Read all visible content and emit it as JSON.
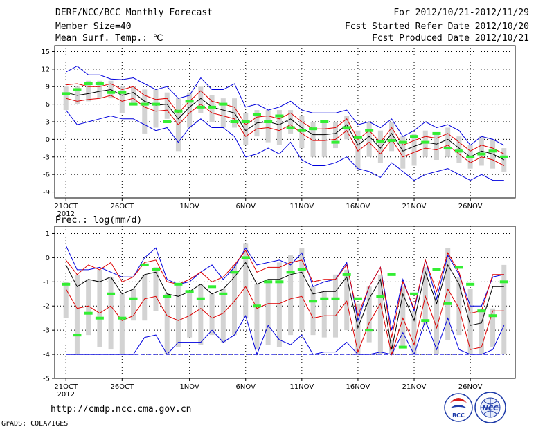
{
  "header": {
    "title": "DERF/NCC/BCC Monthly Forecast",
    "member_size": "Member Size=40",
    "variable": "Mean Surf. Temp.: ℃",
    "period": "For 2012/10/21-2012/11/29",
    "started": "Fcst Started Refer Date 2012/10/20",
    "produced": "Fcst Produced Date 2012/10/21"
  },
  "footer": {
    "url": "http://cmdp.ncc.cma.gov.cn",
    "credit": "GrADS: COLA/IGES",
    "logo_bcc_text": "BCC",
    "logo_ncc_text": "NCC"
  },
  "colors": {
    "box": "#d3d3d3",
    "median": "#33ee33",
    "mean": "#000000",
    "inner": "#dd0000",
    "outer": "#0000dd"
  },
  "chart_data": [
    {
      "type": "line",
      "title": "Mean Surf. Temp.: ℃",
      "ylim": [
        -10,
        16
      ],
      "yticks": [
        15,
        12,
        9,
        6,
        3,
        0,
        -3,
        -6,
        -9
      ],
      "ytick_labels": [
        "15",
        "12",
        "9",
        "6",
        "3",
        "0",
        "-3",
        "-6",
        "-9"
      ],
      "xticks": [
        {
          "day": 1,
          "label": "21OCT"
        },
        {
          "day": 6,
          "label": "26OCT"
        },
        {
          "day": 12,
          "label": "1NOV"
        },
        {
          "day": 17,
          "label": "6NOV"
        },
        {
          "day": 22,
          "label": "11NOV"
        },
        {
          "day": 27,
          "label": "16NOV"
        },
        {
          "day": 32,
          "label": "21NOV"
        },
        {
          "day": 37,
          "label": "26NOV"
        }
      ],
      "year_label": "2012",
      "x": [
        1,
        2,
        3,
        4,
        5,
        6,
        7,
        8,
        9,
        10,
        11,
        12,
        13,
        14,
        15,
        16,
        17,
        18,
        19,
        20,
        21,
        22,
        23,
        24,
        25,
        26,
        27,
        28,
        29,
        30,
        31,
        32,
        33,
        34,
        35,
        36,
        37,
        38,
        39,
        40
      ],
      "series": [
        {
          "name": "mean",
          "values": [
            8,
            7.5,
            7.8,
            8.2,
            8.5,
            7.5,
            8,
            6.5,
            5.8,
            6,
            3.5,
            5.5,
            7,
            5.5,
            5,
            4.5,
            1.5,
            2.8,
            3,
            2.5,
            3.5,
            2,
            0.8,
            0.8,
            1,
            2.5,
            -1,
            0.5,
            -1.5,
            1,
            -2,
            -1.2,
            -0.5,
            -0.8,
            0,
            -1.5,
            -3,
            -2,
            -2.5,
            -3.5
          ]
        },
        {
          "name": "inner_upper",
          "values": [
            9.3,
            9.5,
            9,
            9,
            9.5,
            8.5,
            9,
            7.5,
            6.8,
            7,
            4.5,
            6.5,
            8.3,
            6.5,
            6,
            5.5,
            2.5,
            3.8,
            4,
            3.5,
            4.5,
            3,
            1.8,
            1.8,
            2,
            3.5,
            0,
            1.5,
            -0.5,
            2,
            -1,
            -0.2,
            0.5,
            0.2,
            1,
            -0.5,
            -2,
            -1,
            -1.5,
            -2.5
          ]
        },
        {
          "name": "inner_lower",
          "values": [
            7,
            6.5,
            6.8,
            7,
            7.5,
            6.5,
            7,
            5.5,
            4.8,
            5,
            2.5,
            4.5,
            6,
            4.5,
            4,
            3.5,
            0.5,
            1.8,
            2,
            1.5,
            2.5,
            1,
            -0.2,
            -0.2,
            0,
            1.5,
            -2,
            -0.5,
            -2.5,
            0,
            -3,
            -2.2,
            -1.5,
            -1.8,
            -1,
            -2.5,
            -4,
            -3,
            -3.5,
            -4.5
          ]
        },
        {
          "name": "outer_upper",
          "values": [
            11.5,
            12.5,
            11,
            11,
            10.3,
            10.2,
            10.5,
            9.5,
            8.5,
            9,
            7,
            7.5,
            10.5,
            8.5,
            8.5,
            9.5,
            5.5,
            6,
            5,
            5.5,
            6.5,
            5,
            4.5,
            4.5,
            4.5,
            5,
            2.5,
            3,
            2,
            3.5,
            0.5,
            1.5,
            3,
            2,
            2.5,
            1.5,
            -1,
            0.5,
            0,
            -1
          ]
        },
        {
          "name": "outer_lower",
          "values": [
            5,
            2.5,
            3,
            3.5,
            4,
            3.5,
            3.5,
            2.5,
            1.5,
            2,
            -0.5,
            2,
            3.5,
            2,
            2,
            0.5,
            -3,
            -2.5,
            -1.5,
            -2.5,
            -0.5,
            -3.5,
            -4.5,
            -4.5,
            -4,
            -3,
            -5,
            -5.5,
            -6.5,
            -4,
            -5.5,
            -7,
            -6,
            -5.5,
            -5,
            -6,
            -7,
            -6,
            -7,
            -7
          ]
        },
        {
          "name": "box_max",
          "values": [
            9,
            9,
            10,
            10,
            10,
            9,
            9,
            8.5,
            8.5,
            8,
            7,
            8,
            9,
            7.5,
            7,
            7,
            4.5,
            5,
            5,
            5,
            5,
            4,
            3,
            3,
            3,
            4,
            1.5,
            3,
            1.5,
            3,
            0.5,
            1,
            1.5,
            1,
            2,
            0.5,
            -1,
            0.5,
            0,
            -1.5
          ]
        },
        {
          "name": "box_min",
          "values": [
            5,
            6,
            6.5,
            7,
            7,
            4.5,
            6,
            1,
            2,
            3.5,
            -2,
            2,
            4.5,
            3,
            2,
            2,
            -1,
            0.5,
            -0.5,
            -1,
            1,
            -1.5,
            -3,
            -3,
            -1.5,
            0,
            -5,
            -3,
            -4,
            -2,
            -5,
            -4.5,
            -3,
            -3.5,
            -3,
            -4,
            -5,
            -4.5,
            -5,
            -5.5
          ]
        },
        {
          "name": "median",
          "values": [
            7.8,
            8.5,
            9.5,
            9.5,
            8,
            8,
            6,
            6,
            6,
            3,
            4.8,
            6.5,
            5.5,
            5.5,
            6,
            3,
            3,
            4.3,
            3,
            4,
            2,
            1.5,
            1.8,
            3,
            -0.5,
            2,
            0.3,
            1.5,
            -0.3,
            -0.2,
            -0.5,
            0.5,
            -0.5,
            1,
            -1.5,
            -2,
            -3,
            -2.5,
            -2,
            -3
          ]
        }
      ]
    },
    {
      "type": "line",
      "title": "Prec.: log(mm/d)",
      "ylim": [
        -5,
        1.3
      ],
      "yticks": [
        1,
        0,
        -1,
        -2,
        -3,
        -4,
        -5
      ],
      "ytick_labels": [
        "1",
        "0",
        "-1",
        "-2",
        "-3",
        "-4",
        "-5"
      ],
      "xticks": [
        {
          "day": 1,
          "label": "21OCT"
        },
        {
          "day": 6,
          "label": "26OCT"
        },
        {
          "day": 12,
          "label": "1NOV"
        },
        {
          "day": 17,
          "label": "6NOV"
        },
        {
          "day": 22,
          "label": "11NOV"
        },
        {
          "day": 27,
          "label": "16NOV"
        },
        {
          "day": 32,
          "label": "21NOV"
        },
        {
          "day": 37,
          "label": "26NOV"
        }
      ],
      "year_label": "2012",
      "floor": -4,
      "x": [
        1,
        2,
        3,
        4,
        5,
        6,
        7,
        8,
        9,
        10,
        11,
        12,
        13,
        14,
        15,
        16,
        17,
        18,
        19,
        20,
        21,
        22,
        23,
        24,
        25,
        26,
        27,
        28,
        29,
        30,
        31,
        32,
        33,
        34,
        35,
        36,
        37,
        38,
        39,
        40
      ],
      "series": [
        {
          "name": "mean",
          "values": [
            -0.3,
            -1.2,
            -0.9,
            -1,
            -0.8,
            -1.5,
            -1.3,
            -0.7,
            -0.6,
            -1.5,
            -1.6,
            -1.4,
            -1.1,
            -1.5,
            -1.3,
            -0.8,
            -0.2,
            -1.1,
            -0.9,
            -0.9,
            -0.7,
            -0.6,
            -1.5,
            -1.4,
            -1.4,
            -0.8,
            -2.9,
            -1.7,
            -0.9,
            -3.8,
            -1.5,
            -2.6,
            -0.6,
            -1.9,
            -0.3,
            -1.1,
            -2.8,
            -2.7,
            -1.2,
            -1.2
          ]
        },
        {
          "name": "inner_upper",
          "values": [
            -0.1,
            -0.7,
            -0.3,
            -0.5,
            -0.2,
            -1,
            -0.8,
            -0.2,
            -0.1,
            -1,
            -1.1,
            -0.9,
            -0.6,
            -1,
            -0.8,
            -0.3,
            0.3,
            -0.6,
            -0.4,
            -0.4,
            -0.2,
            -0.1,
            -1,
            -0.9,
            -0.9,
            -0.3,
            -2.4,
            -1.2,
            -0.4,
            -3.3,
            -1,
            -2.1,
            -0.1,
            -1.4,
            0.2,
            -0.6,
            -2.3,
            -2.2,
            -0.7,
            -0.7
          ]
        },
        {
          "name": "inner_lower",
          "values": [
            -1.3,
            -2.1,
            -2,
            -2.3,
            -2,
            -2.6,
            -2.4,
            -1.7,
            -1.6,
            -2.4,
            -2.6,
            -2.4,
            -2.1,
            -2.5,
            -2.3,
            -1.8,
            -1.2,
            -2.1,
            -1.9,
            -1.9,
            -1.7,
            -1.6,
            -2.5,
            -2.4,
            -2.4,
            -1.8,
            -3.9,
            -2.7,
            -1.9,
            -4,
            -2.5,
            -3.6,
            -1.6,
            -2.9,
            -1.3,
            -2.1,
            -3.8,
            -3.7,
            -2.2,
            -2.2
          ]
        },
        {
          "name": "outer_upper",
          "values": [
            0.5,
            -0.5,
            -0.5,
            -0.4,
            -0.6,
            -0.8,
            -0.8,
            0,
            0.4,
            -0.9,
            -1.1,
            -1,
            -0.6,
            -0.3,
            -0.9,
            -0.4,
            0.4,
            -0.3,
            -0.2,
            -0.1,
            -0.3,
            0.2,
            -1.2,
            -1,
            -0.9,
            -0.2,
            -2.6,
            -1.2,
            -0.4,
            -3,
            -0.9,
            -2.2,
            -0.1,
            -1.7,
            0.1,
            -0.7,
            -2,
            -2,
            -0.8,
            -0.7
          ]
        },
        {
          "name": "outer_lower",
          "values": [
            -4,
            -4,
            -4,
            -4,
            -4,
            -4,
            -4,
            -3.3,
            -3.2,
            -4,
            -3.5,
            -3.5,
            -3.5,
            -3,
            -3.5,
            -3.2,
            -2.4,
            -4,
            -2.8,
            -3.4,
            -3.6,
            -3.2,
            -4,
            -3.9,
            -3.9,
            -3.5,
            -4,
            -4,
            -3.9,
            -4,
            -3.1,
            -4,
            -2.6,
            -3.8,
            -2.5,
            -3.8,
            -4,
            -4,
            -3.8,
            -2.8
          ]
        },
        {
          "name": "box_max",
          "values": [
            -1,
            -0.7,
            -0.9,
            -0.5,
            -0.8,
            -1.5,
            -1.3,
            -0.7,
            -0.4,
            -1.5,
            -1.1,
            -1.4,
            -1.1,
            -1.5,
            -1.3,
            -0.3,
            0.6,
            -1.1,
            -0.9,
            -0.2,
            0.1,
            0.4,
            -1.2,
            -1.4,
            -0.7,
            -0.5,
            -1.9,
            -1.2,
            -0.7,
            -3.4,
            -1.2,
            -2.2,
            -0.4,
            -1.6,
            0.4,
            -0.8,
            -1.3,
            -2.2,
            -2.1,
            -0.3
          ]
        },
        {
          "name": "box_min",
          "values": [
            -2.5,
            -4,
            -3.2,
            -3.7,
            -3.8,
            -4,
            -2.6,
            -2.6,
            -2.2,
            -4,
            -3.7,
            -3.3,
            -3.6,
            -3.2,
            -3.5,
            -3.2,
            -2.5,
            -3.8,
            -3.6,
            -3.7,
            -3.2,
            -3,
            -3.2,
            -3.3,
            -3.3,
            -3,
            -4,
            -3.5,
            -4,
            -4,
            -3.7,
            -4,
            -2.8,
            -4,
            -3.4,
            -3.2,
            -4,
            -4,
            -3.7,
            -4
          ]
        },
        {
          "name": "median",
          "values": [
            -1.1,
            -3.2,
            -2.3,
            -2.5,
            -1.5,
            -2.5,
            -1.7,
            -0.3,
            -0.5,
            -1.6,
            -1.1,
            -1.4,
            -1.7,
            -1.2,
            -1.5,
            -0.6,
            0,
            -2,
            -1,
            -1,
            -0.6,
            -0.5,
            -1.8,
            -1.7,
            -1.7,
            -0.7,
            -1.7,
            -3,
            -1.6,
            -0.7,
            -3.7,
            -1.5,
            -2.6,
            -0.5,
            -1.9,
            -0.4,
            -1.1,
            -2.2,
            -2.4,
            -1
          ]
        }
      ]
    }
  ]
}
